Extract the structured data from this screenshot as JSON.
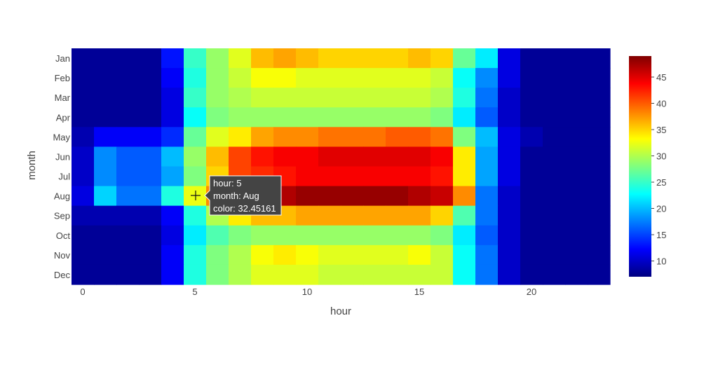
{
  "chart_data": {
    "type": "heatmap",
    "title": "",
    "xlabel": "hour",
    "ylabel": "month",
    "x": [
      0,
      1,
      2,
      3,
      4,
      5,
      6,
      7,
      8,
      9,
      10,
      11,
      12,
      13,
      14,
      15,
      16,
      17,
      18,
      19,
      20,
      21,
      22,
      23
    ],
    "x_ticks": [
      0,
      5,
      10,
      15,
      20
    ],
    "y": [
      "Jan",
      "Feb",
      "Mar",
      "Apr",
      "May",
      "Jun",
      "Jul",
      "Aug",
      "Sep",
      "Oct",
      "Nov",
      "Dec"
    ],
    "z": [
      [
        8,
        8,
        8,
        8,
        13,
        25,
        29,
        32,
        36,
        37,
        36,
        35,
        35,
        35,
        35,
        36,
        35,
        27,
        22,
        11,
        8,
        8,
        8,
        8
      ],
      [
        8,
        8,
        8,
        8,
        12,
        24,
        29,
        31,
        33,
        33,
        32,
        32,
        32,
        32,
        32,
        32,
        31,
        23,
        18,
        11,
        8,
        8,
        8,
        8
      ],
      [
        8,
        8,
        8,
        8,
        11,
        25,
        29,
        30,
        31,
        31,
        31,
        31,
        31,
        31,
        31,
        31,
        30,
        24,
        17,
        10,
        8,
        8,
        8,
        8
      ],
      [
        8,
        8,
        8,
        8,
        11,
        23,
        28,
        29,
        29,
        29,
        29,
        29,
        29,
        29,
        29,
        29,
        28,
        22,
        16,
        10,
        8,
        8,
        8,
        8
      ],
      [
        9,
        12,
        12,
        12,
        14,
        27,
        32,
        34,
        37,
        38,
        38,
        39,
        39,
        39,
        40,
        40,
        39,
        28,
        20,
        11,
        9,
        8,
        8,
        8
      ],
      [
        10,
        18,
        16,
        16,
        20,
        29,
        36,
        41,
        43,
        44,
        44,
        45,
        45,
        45,
        45,
        45,
        44,
        34,
        19,
        11,
        8,
        8,
        8,
        8
      ],
      [
        10,
        18,
        16,
        16,
        19,
        28,
        35,
        41,
        42,
        43,
        44,
        44,
        44,
        44,
        44,
        44,
        43,
        34,
        19,
        11,
        8,
        8,
        8,
        8
      ],
      [
        11,
        21,
        17,
        17,
        24,
        32.45161,
        38,
        42,
        47,
        47,
        48,
        48,
        48,
        48,
        48,
        47,
        46,
        38,
        17,
        10,
        8,
        8,
        8,
        8
      ],
      [
        9,
        9,
        9,
        9,
        12,
        24,
        30,
        34,
        36,
        36,
        37,
        37,
        37,
        37,
        37,
        37,
        35,
        26,
        17,
        10,
        8,
        8,
        8,
        8
      ],
      [
        8,
        8,
        8,
        8,
        11,
        22,
        26,
        28,
        29,
        29,
        29,
        29,
        29,
        29,
        29,
        29,
        28,
        22,
        16,
        10,
        8,
        8,
        8,
        8
      ],
      [
        8,
        8,
        8,
        8,
        12,
        24,
        28,
        30,
        33,
        34,
        33,
        32,
        32,
        32,
        32,
        33,
        31,
        23,
        17,
        10,
        8,
        8,
        8,
        8
      ],
      [
        8,
        8,
        8,
        8,
        12,
        24,
        28,
        30,
        32,
        32,
        32,
        31,
        31,
        31,
        31,
        31,
        31,
        23,
        17,
        10,
        8,
        8,
        8,
        8
      ]
    ],
    "zmin": 7,
    "zmax": 49,
    "colorbar_ticks": [
      10,
      15,
      20,
      25,
      30,
      35,
      40,
      45
    ],
    "colorscale": [
      "#00007f",
      "#0000ff",
      "#007fff",
      "#00ffff",
      "#7fff7f",
      "#ffff00",
      "#ff7f00",
      "#ff0000",
      "#7f0000"
    ],
    "hover": {
      "hour": 5,
      "month": "Aug",
      "lines": [
        "hour: 5",
        "month: Aug",
        "color: 32.45161"
      ]
    }
  }
}
